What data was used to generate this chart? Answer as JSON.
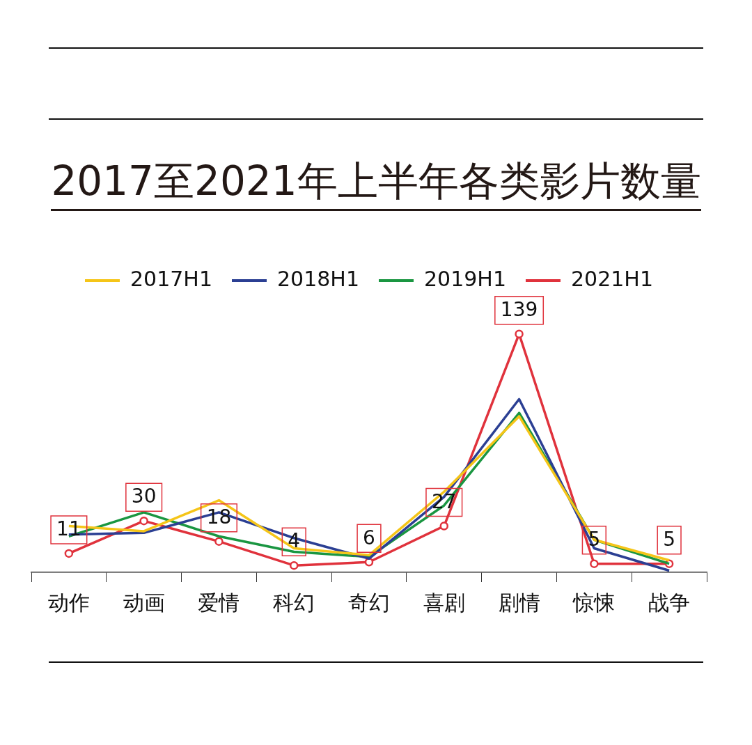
{
  "chart_data": {
    "type": "line",
    "title": "2017至2021年上半年各类影片数量",
    "categories": [
      "动作",
      "动画",
      "爱情",
      "科幻",
      "奇幻",
      "喜剧",
      "剧情",
      "惊悚",
      "战争"
    ],
    "series": [
      {
        "name": "2017H1",
        "color": "#f5c518",
        "marker": "none",
        "values": [
          27,
          24,
          42,
          14,
          10,
          47,
          91,
          19,
          7
        ]
      },
      {
        "name": "2018H1",
        "color": "#2b3f93",
        "marker": "none",
        "values": [
          22,
          23,
          35,
          20,
          8,
          44,
          101,
          14,
          1
        ]
      },
      {
        "name": "2019H1",
        "color": "#1a9641",
        "marker": "none",
        "values": [
          21,
          35,
          21,
          12,
          9,
          39,
          93,
          19,
          5
        ]
      },
      {
        "name": "2021H1",
        "color": "#e0323c",
        "marker": "circle",
        "values": [
          11,
          30,
          18,
          4,
          6,
          27,
          139,
          5,
          5
        ],
        "value_labels": [
          "11",
          "30",
          "18",
          "4",
          "6",
          "27",
          "139",
          "5",
          "5"
        ]
      }
    ],
    "legend": "top",
    "grid": false,
    "tick_labels": "x",
    "line_style": "solid"
  }
}
